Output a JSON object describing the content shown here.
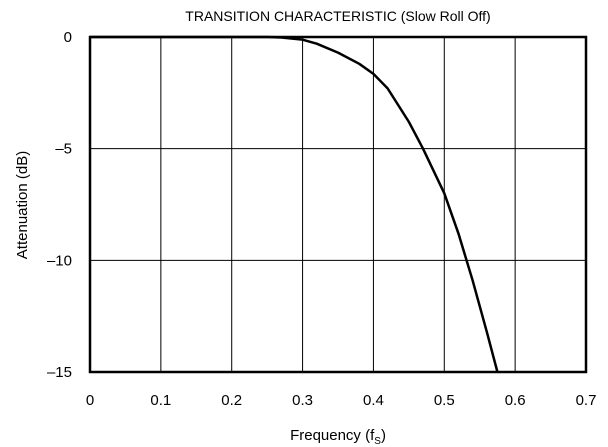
{
  "chart_data": {
    "type": "line",
    "title": "TRANSITION CHARACTERISTIC (Slow Roll Off)",
    "xlabel_main": "Frequency (f",
    "xlabel_sub": "S",
    "xlabel_close": ")",
    "ylabel": "Attenuation (dB)",
    "xlim": [
      0,
      0.7
    ],
    "ylim": [
      -15,
      0
    ],
    "x_ticks": [
      0,
      0.1,
      0.2,
      0.3,
      0.4,
      0.5,
      0.6,
      0.7
    ],
    "x_tick_labels": [
      "0",
      "0.1",
      "0.2",
      "0.3",
      "0.4",
      "0.5",
      "0.6",
      "0.7"
    ],
    "y_ticks": [
      0,
      -5,
      -10,
      -15
    ],
    "y_tick_labels": [
      "0",
      "–5",
      "–10",
      "–15"
    ],
    "grid": true,
    "series": [
      {
        "color": "#000000",
        "x": [
          0,
          0.05,
          0.1,
          0.15,
          0.2,
          0.25,
          0.27,
          0.3,
          0.32,
          0.35,
          0.38,
          0.4,
          0.42,
          0.45,
          0.47,
          0.5,
          0.52,
          0.54,
          0.56,
          0.575
        ],
        "y": [
          0,
          0,
          0,
          0,
          0,
          0,
          -0.02,
          -0.12,
          -0.3,
          -0.7,
          -1.2,
          -1.65,
          -2.3,
          -3.8,
          -5.0,
          -7.0,
          -8.8,
          -10.9,
          -13.2,
          -15
        ]
      }
    ]
  }
}
